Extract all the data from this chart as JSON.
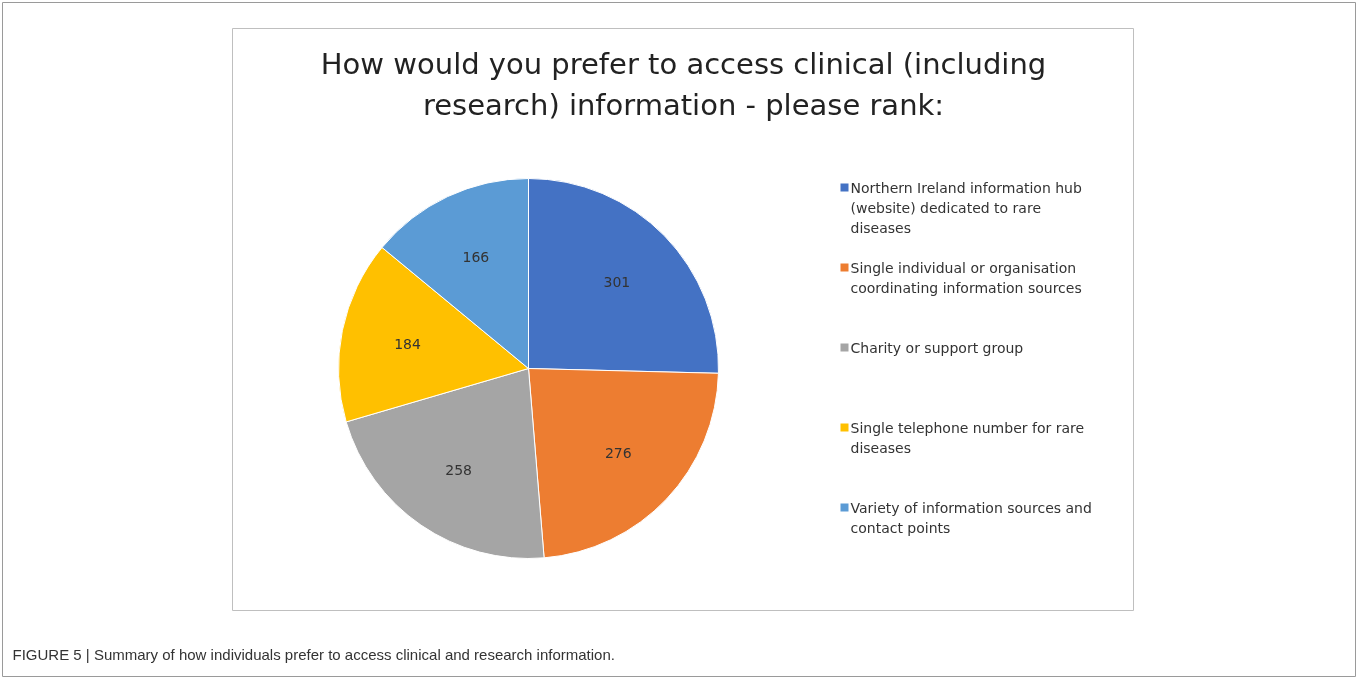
{
  "chart_data": {
    "type": "pie",
    "title": "How would you prefer to access clinical (including research) information - please rank:",
    "categories": [
      "Northern Ireland information hub (website) dedicated to rare diseases",
      "Single individual or organisation coordinating information sources",
      "Charity or support group",
      "Single telephone number for rare diseases",
      "Variety of information sources and contact points"
    ],
    "values": [
      301,
      276,
      258,
      184,
      166
    ],
    "colors": [
      "#4472c4",
      "#ed7d31",
      "#a5a5a5",
      "#ffc000",
      "#5b9bd5"
    ],
    "data_labels": true,
    "legend": "right",
    "annotations": [
      "FIGURE 5 | Summary of how individuals prefer to access clinical and research information."
    ]
  }
}
